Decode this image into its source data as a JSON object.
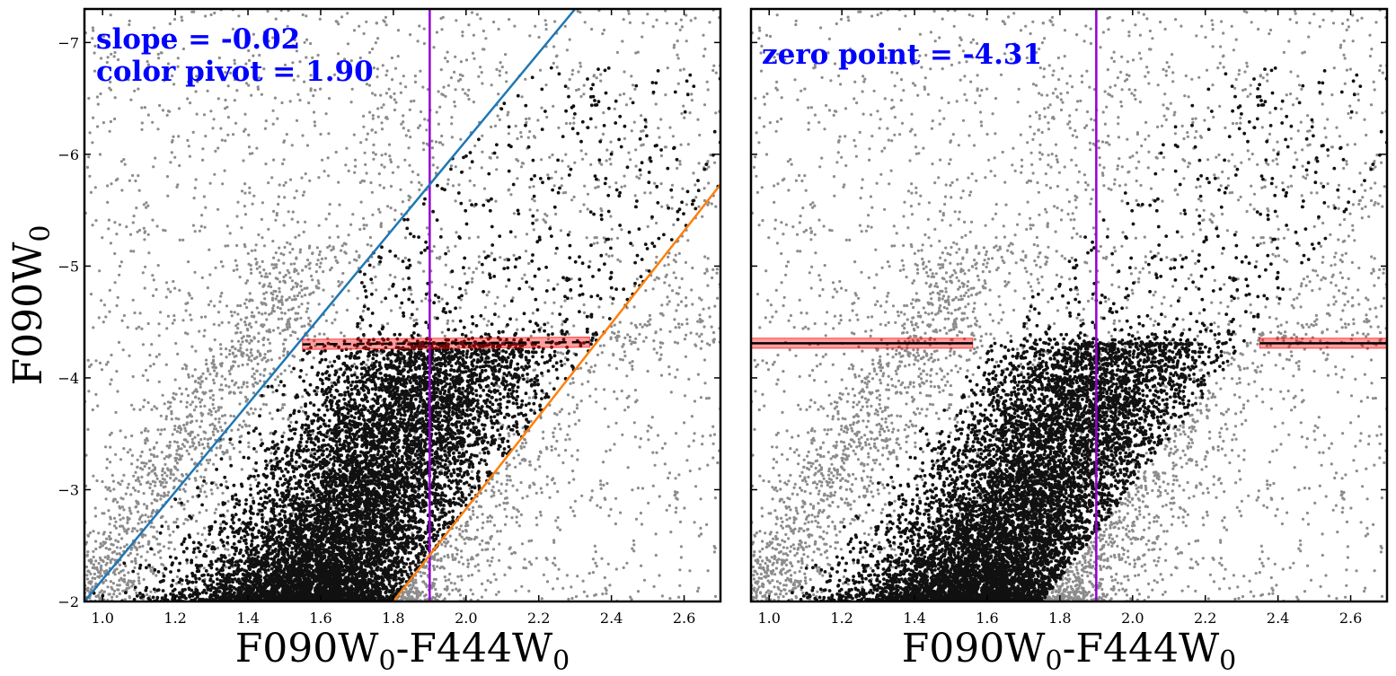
{
  "chart_data": [
    {
      "type": "scatter",
      "panel": "left",
      "xlim": [
        0.95,
        2.7
      ],
      "ylim": [
        -2.0,
        -7.3
      ],
      "y_axis_inverted": true,
      "xticks": [
        "1.0",
        "1.2",
        "1.4",
        "1.6",
        "1.8",
        "2.0",
        "2.2",
        "2.4",
        "2.6"
      ],
      "yticks": [
        "−7",
        "−6",
        "−5",
        "−4",
        "−3",
        "−2"
      ],
      "xlabel": {
        "band1": "F090W",
        "sub1": "0",
        "sep": "-F444W",
        "sub2": "0"
      },
      "ylabel": {
        "band": "F090W",
        "sub": "0"
      },
      "annotations": [
        "slope = -0.02",
        "color pivot = 1.90"
      ],
      "grid": false,
      "series": [
        {
          "name": "",
          "color": "#808080",
          "description_points": "background sources (gray)"
        },
        {
          "name": "",
          "color": "#000000",
          "description_points": "selected sources (black)"
        }
      ],
      "lines": [
        {
          "kind": "vertical",
          "x": 1.9,
          "color": "#9400d3"
        },
        {
          "kind": "line",
          "color": "#1f77b4",
          "points": [
            [
              0.95,
              -2.0
            ],
            [
              2.3,
              -7.3
            ]
          ]
        },
        {
          "kind": "line",
          "color": "#ff7f0e",
          "points": [
            [
              1.8,
              -2.0
            ],
            [
              2.7,
              -5.73
            ]
          ]
        },
        {
          "kind": "fit",
          "color": "#000000",
          "dashed": true,
          "band_color": "#ff0000",
          "points": [
            [
              1.55,
              -4.3
            ],
            [
              2.34,
              -4.32
            ]
          ]
        }
      ],
      "tip_fit": {
        "slope": -0.02,
        "color_pivot": 1.9,
        "zero_point": -4.31
      }
    },
    {
      "type": "scatter",
      "panel": "right",
      "xlim": [
        0.95,
        2.7
      ],
      "ylim": [
        -2.0,
        -7.3
      ],
      "y_axis_inverted": true,
      "xticks": [
        "1.0",
        "1.2",
        "1.4",
        "1.6",
        "1.8",
        "2.0",
        "2.2",
        "2.4",
        "2.6"
      ],
      "xlabel": {
        "band1": "F090W",
        "sub1": "0",
        "sep": "-F444W",
        "sub2": "0"
      },
      "annotations": [
        "zero point = -4.31"
      ],
      "grid": false,
      "lines": [
        {
          "kind": "vertical",
          "x": 1.9,
          "color": "#9400d3"
        },
        {
          "kind": "segment",
          "color": "#000000",
          "band_color": "#ff0000",
          "points": [
            [
              0.95,
              -4.31
            ],
            [
              1.56,
              -4.31
            ]
          ]
        },
        {
          "kind": "segment",
          "color": "#000000",
          "band_color": "#ff0000",
          "points": [
            [
              2.35,
              -4.31
            ],
            [
              2.7,
              -4.31
            ]
          ]
        }
      ]
    }
  ]
}
